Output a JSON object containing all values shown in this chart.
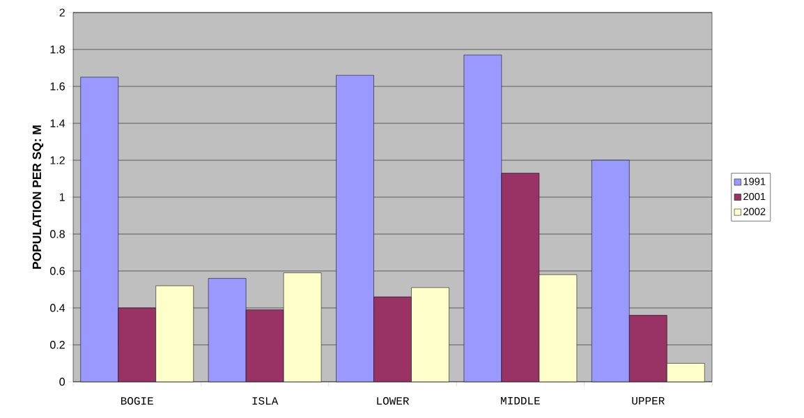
{
  "chart_data": {
    "type": "bar",
    "ylabel": "POPULATION PER SQ: M",
    "categories": [
      "BOGIE",
      "ISLA",
      "LOWER",
      "MIDDLE",
      "UPPER"
    ],
    "series": [
      {
        "name": "1991",
        "color": "#9999ff",
        "values": [
          1.65,
          0.56,
          1.66,
          1.77,
          1.2
        ]
      },
      {
        "name": "2001",
        "color": "#993366",
        "values": [
          0.4,
          0.39,
          0.46,
          1.13,
          0.36
        ]
      },
      {
        "name": "2002",
        "color": "#ffffcc",
        "values": [
          0.52,
          0.59,
          0.51,
          0.58,
          0.1
        ]
      }
    ],
    "ylim": [
      0,
      2
    ],
    "yticks": [
      0,
      0.2,
      0.4,
      0.6,
      0.8,
      1,
      1.2,
      1.4,
      1.6,
      1.8,
      2
    ],
    "grid": "y",
    "legend": "right"
  }
}
